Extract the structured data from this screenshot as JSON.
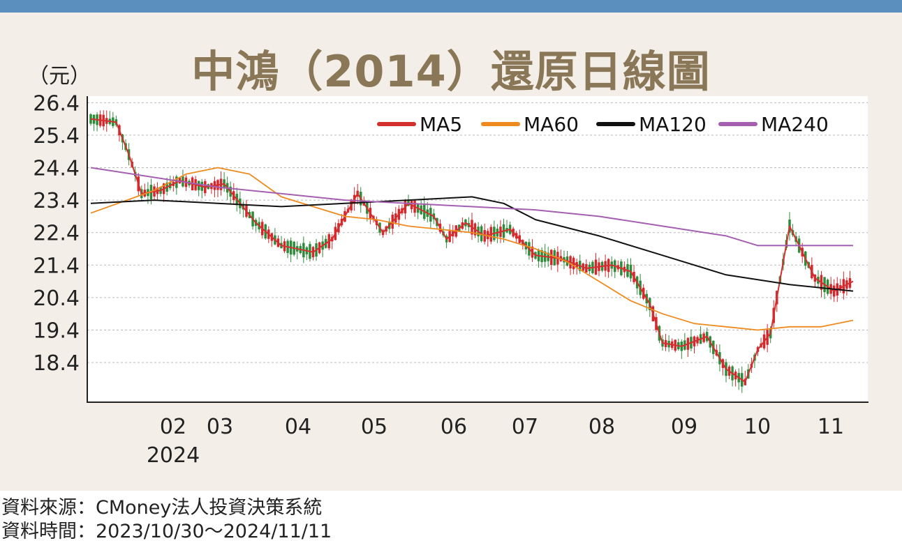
{
  "title": "中鴻（2014）還原日線圖",
  "unit_label": "（元）",
  "footer": {
    "source": "資料來源：CMoney法人投資決策系統",
    "period": "資料時間：2023/10/30～2024/11/11"
  },
  "chart_data": {
    "type": "candlestick",
    "y_ticks": [
      "26.4",
      "25.4",
      "24.4",
      "23.4",
      "22.4",
      "21.4",
      "20.4",
      "19.4",
      "18.4"
    ],
    "ylim": [
      17.2,
      26.6
    ],
    "x_month_labels": [
      "02",
      "03",
      "04",
      "05",
      "06",
      "07",
      "08",
      "09",
      "10",
      "11"
    ],
    "x_year_label": "2024",
    "grid": true,
    "legend_position": "top-right",
    "up_color": "#d7262b",
    "down_color": "#2e8b3a",
    "legend": [
      {
        "name": "MA5",
        "color": "#d32f2f"
      },
      {
        "name": "MA60",
        "color": "#ef8a1e"
      },
      {
        "name": "MA120",
        "color": "#111111"
      },
      {
        "name": "MA240",
        "color": "#a45fb0"
      }
    ],
    "series": [
      {
        "name": "MA5",
        "x": [
          0,
          8,
          12,
          16,
          22,
          28,
          36,
          42,
          52,
          60,
          70,
          76,
          84,
          92,
          100,
          104,
          108,
          112,
          118,
          124,
          132,
          140,
          148,
          156,
          164,
          170,
          176,
          180,
          186,
          194,
          200,
          206,
          210,
          214,
          220,
          228,
          234,
          240
        ],
        "values": [
          25.9,
          25.8,
          24.8,
          23.6,
          23.7,
          24.0,
          23.8,
          23.9,
          22.7,
          22.0,
          21.8,
          22.2,
          23.6,
          22.4,
          23.3,
          23.1,
          22.9,
          22.2,
          22.7,
          22.3,
          22.5,
          21.7,
          21.6,
          21.3,
          21.4,
          21.2,
          20.2,
          19.0,
          18.9,
          19.2,
          18.2,
          17.8,
          18.8,
          19.3,
          22.6,
          21.0,
          20.6,
          20.9
        ]
      },
      {
        "name": "MA60",
        "x": [
          0,
          20,
          30,
          40,
          50,
          60,
          70,
          80,
          90,
          100,
          110,
          120,
          130,
          140,
          150,
          160,
          170,
          180,
          190,
          200,
          210,
          220,
          230,
          240
        ],
        "values": [
          23.0,
          23.7,
          24.2,
          24.4,
          24.2,
          23.5,
          23.2,
          22.9,
          22.8,
          22.6,
          22.5,
          22.4,
          22.2,
          21.9,
          21.5,
          20.9,
          20.3,
          19.9,
          19.6,
          19.5,
          19.4,
          19.5,
          19.5,
          19.7
        ]
      },
      {
        "name": "MA120",
        "x": [
          0,
          20,
          40,
          60,
          80,
          100,
          120,
          130,
          140,
          160,
          180,
          200,
          220,
          240
        ],
        "values": [
          23.3,
          23.4,
          23.3,
          23.2,
          23.3,
          23.4,
          23.5,
          23.3,
          22.8,
          22.3,
          21.7,
          21.1,
          20.8,
          20.6
        ]
      },
      {
        "name": "MA240",
        "x": [
          0,
          40,
          80,
          100,
          140,
          160,
          180,
          200,
          210,
          220,
          240
        ],
        "values": [
          24.4,
          23.8,
          23.4,
          23.3,
          23.1,
          22.9,
          22.6,
          22.3,
          22.0,
          22.0,
          22.0
        ]
      }
    ]
  }
}
